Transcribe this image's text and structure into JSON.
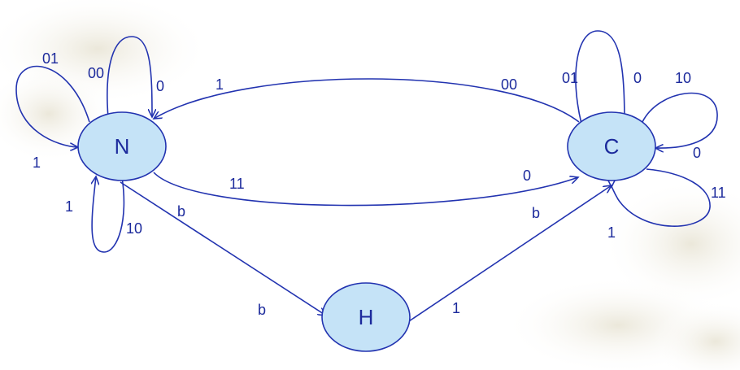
{
  "colors": {
    "edge": "#2233b0",
    "node_fill": "#c5e3f7",
    "label": "#1c2a9c"
  },
  "nodes": {
    "n": "N",
    "c": "C",
    "h": "H"
  },
  "edges": {
    "n_loop_01": "01",
    "n_loop_01_in": "1",
    "n_loop_00": "00",
    "n_loop_00_in": "0",
    "n_loop_10": "10",
    "n_loop_10_in": "1",
    "c_to_n_out": "00",
    "c_to_n_in": "1",
    "n_to_c_out": "11",
    "n_to_c_in": "0",
    "c_loop_01": "01",
    "c_loop_01_in": "0",
    "c_loop_10": "10",
    "c_loop_10_in": "0",
    "c_loop_11": "11",
    "c_loop_11_in": "1",
    "n_to_h_out": "b",
    "n_to_h_in": "b",
    "c_h_b": "b",
    "c_h_1": "1"
  }
}
